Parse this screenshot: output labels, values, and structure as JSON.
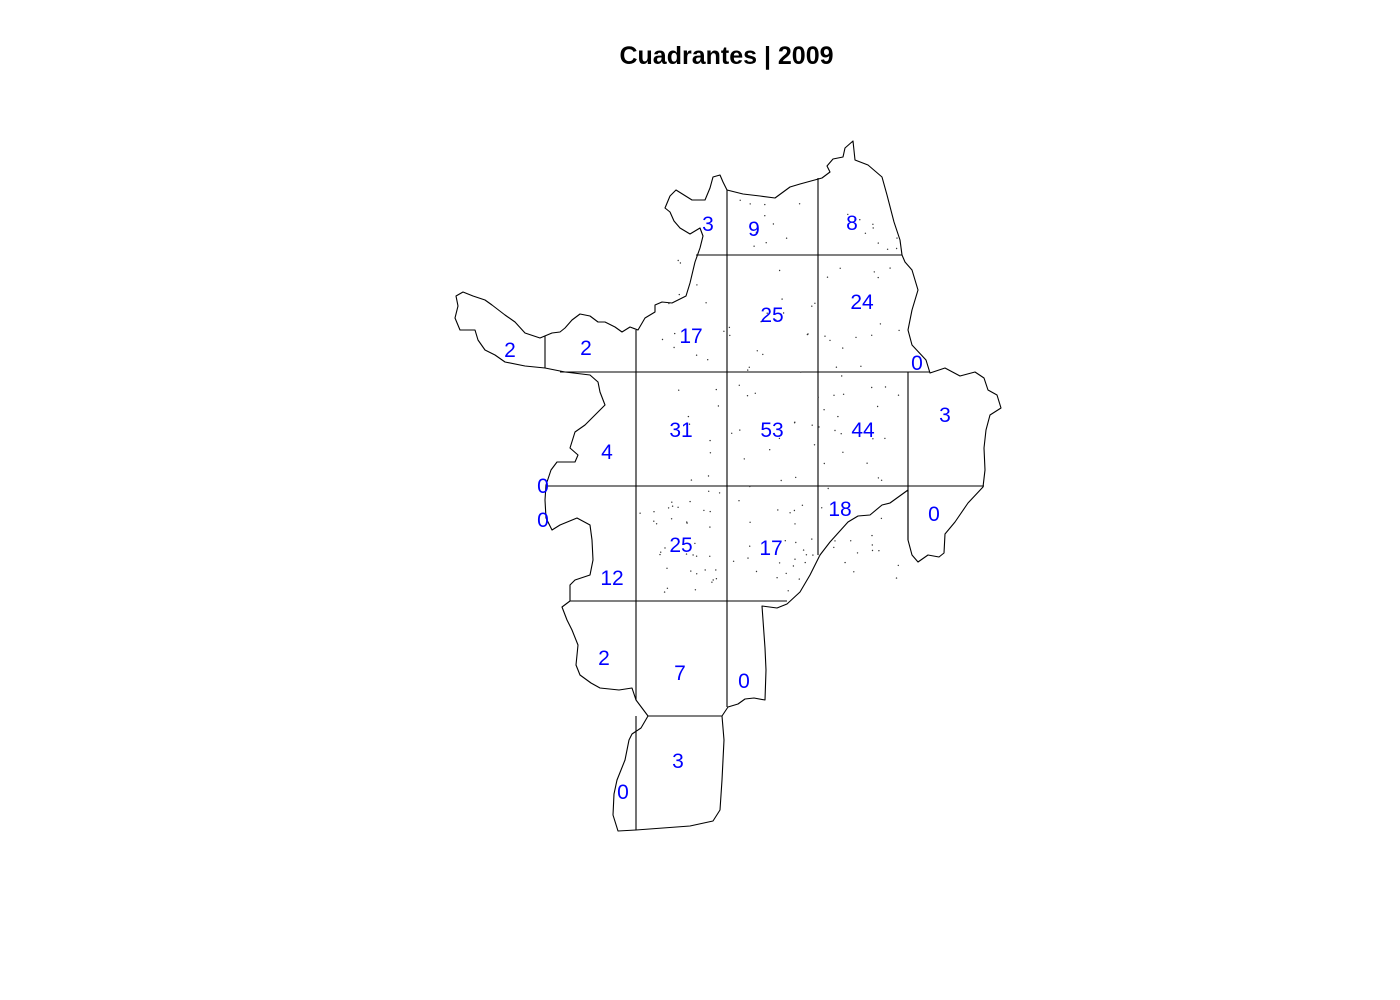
{
  "title": "Cuadrantes | 2009",
  "label_color": "#0000ff",
  "quadrant_counts": [
    {
      "id": "q1",
      "value": "3"
    },
    {
      "id": "q2",
      "value": "9"
    },
    {
      "id": "q3",
      "value": "8"
    },
    {
      "id": "q4",
      "value": "17"
    },
    {
      "id": "q5",
      "value": "25"
    },
    {
      "id": "q6",
      "value": "24"
    },
    {
      "id": "q7",
      "value": "2"
    },
    {
      "id": "q8",
      "value": "2"
    },
    {
      "id": "q9",
      "value": "0"
    },
    {
      "id": "q10",
      "value": "31"
    },
    {
      "id": "q11",
      "value": "53"
    },
    {
      "id": "q12",
      "value": "44"
    },
    {
      "id": "q13",
      "value": "3"
    },
    {
      "id": "q14",
      "value": "4"
    },
    {
      "id": "q15",
      "value": "0"
    },
    {
      "id": "q16",
      "value": "0"
    },
    {
      "id": "q17",
      "value": "18"
    },
    {
      "id": "q18",
      "value": "0"
    },
    {
      "id": "q19",
      "value": "25"
    },
    {
      "id": "q20",
      "value": "17"
    },
    {
      "id": "q21",
      "value": "12"
    },
    {
      "id": "q22",
      "value": "2"
    },
    {
      "id": "q23",
      "value": "7"
    },
    {
      "id": "q24",
      "value": "0"
    },
    {
      "id": "q25",
      "value": "3"
    },
    {
      "id": "q26",
      "value": "0"
    }
  ]
}
